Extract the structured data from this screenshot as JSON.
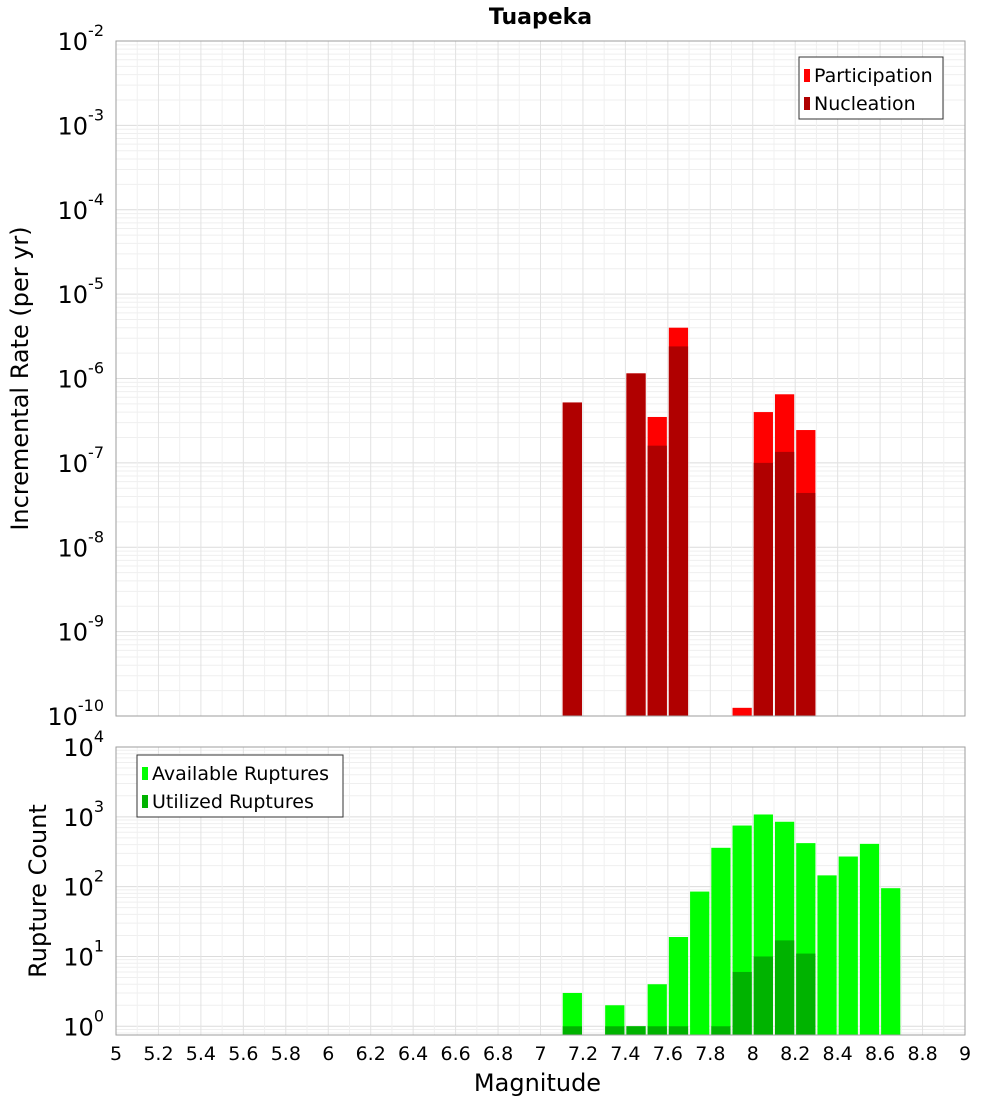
{
  "chart_data": {
    "type": "bar",
    "title": "Tuapeka",
    "xlabel": "Magnitude",
    "xlim": [
      5,
      9
    ],
    "x_ticks": [
      "5",
      "5.2",
      "5.4",
      "5.6",
      "5.8",
      "6",
      "6.2",
      "6.4",
      "6.6",
      "6.8",
      "7",
      "7.2",
      "7.4",
      "7.6",
      "7.8",
      "8",
      "8.2",
      "8.4",
      "8.6",
      "8.8",
      "9"
    ],
    "bin_width": 0.1,
    "panels": [
      {
        "ylabel": "Incremental Rate (per yr)",
        "yscale": "log",
        "ylim": [
          1e-10,
          0.01
        ],
        "y_ticks": [
          {
            "base": "10",
            "exp": "-10"
          },
          {
            "base": "10",
            "exp": "-9"
          },
          {
            "base": "10",
            "exp": "-8"
          },
          {
            "base": "10",
            "exp": "-7"
          },
          {
            "base": "10",
            "exp": "-6"
          },
          {
            "base": "10",
            "exp": "-5"
          },
          {
            "base": "10",
            "exp": "-4"
          },
          {
            "base": "10",
            "exp": "-3"
          },
          {
            "base": "10",
            "exp": "-2"
          }
        ],
        "legend_position": "top-right",
        "series": [
          {
            "name": "Participation",
            "color": "#ff0000",
            "x": [
              7.15,
              7.45,
              7.55,
              7.65,
              7.95,
              8.05,
              8.15,
              8.25
            ],
            "values": [
              5.2e-07,
              1.15e-06,
              3.5e-07,
              4e-06,
              1.25e-10,
              4e-07,
              6.5e-07,
              2.45e-07
            ]
          },
          {
            "name": "Nucleation",
            "color": "#b00000",
            "x": [
              7.15,
              7.45,
              7.55,
              7.65,
              8.05,
              8.15,
              8.25
            ],
            "values": [
              5.2e-07,
              1.15e-06,
              1.6e-07,
              2.4e-06,
              1e-07,
              1.35e-07,
              4.4e-08
            ]
          }
        ]
      },
      {
        "ylabel": "Rupture Count",
        "yscale": "log",
        "ylim": [
          0.75,
          10000
        ],
        "y_ticks": [
          {
            "base": "10",
            "exp": "0"
          },
          {
            "base": "10",
            "exp": "1"
          },
          {
            "base": "10",
            "exp": "2"
          },
          {
            "base": "10",
            "exp": "3"
          },
          {
            "base": "10",
            "exp": "4"
          }
        ],
        "legend_position": "top-left",
        "series": [
          {
            "name": "Available Ruptures",
            "color": "#00ff00",
            "x": [
              7.15,
              7.35,
              7.45,
              7.55,
              7.65,
              7.75,
              7.85,
              7.95,
              8.05,
              8.15,
              8.25,
              8.35,
              8.45,
              8.55,
              8.65
            ],
            "values": [
              3,
              2,
              1,
              4,
              19,
              85,
              360,
              750,
              1080,
              850,
              420,
              145,
              270,
              410,
              95
            ]
          },
          {
            "name": "Utilized Ruptures",
            "color": "#00b300",
            "x": [
              7.15,
              7.35,
              7.45,
              7.55,
              7.65,
              7.85,
              7.95,
              8.05,
              8.15,
              8.25
            ],
            "values": [
              1,
              1,
              1,
              1,
              1,
              1,
              6,
              10,
              17,
              11
            ]
          }
        ]
      }
    ]
  }
}
